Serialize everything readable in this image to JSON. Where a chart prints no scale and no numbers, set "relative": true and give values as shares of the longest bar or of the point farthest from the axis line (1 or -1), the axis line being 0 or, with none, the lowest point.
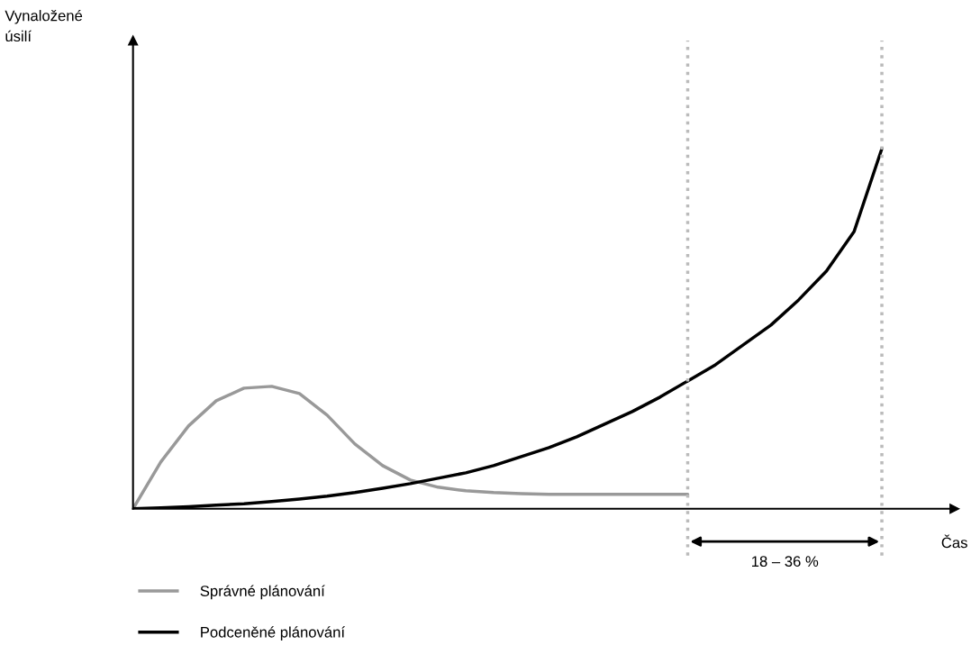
{
  "chart_data": {
    "type": "line",
    "relative": true,
    "xlabel": "Čas",
    "categories": [
      null,
      null,
      null,
      null,
      null,
      null,
      null,
      null,
      null,
      null,
      null,
      null,
      null,
      null,
      null,
      null,
      null,
      null,
      null,
      null,
      null,
      null,
      null,
      null,
      null,
      null,
      null,
      null
    ],
    "series": [
      {
        "name": "Správné plánování",
        "color": "#999999",
        "values": [
          0,
          0.13,
          0.23,
          0.3,
          0.335,
          0.34,
          0.32,
          0.26,
          0.18,
          0.12,
          0.08,
          0.06,
          0.05,
          0.045,
          0.042,
          0.04,
          0.04,
          0.04,
          0.04,
          0.04,
          0.04,
          null,
          null,
          null,
          null,
          null,
          null,
          null
        ]
      },
      {
        "name": "Podceněné plánování",
        "color": "#000000",
        "values": [
          0,
          0.003,
          0.006,
          0.01,
          0.014,
          0.02,
          0.027,
          0.035,
          0.045,
          0.057,
          0.07,
          0.085,
          0.1,
          0.12,
          0.145,
          0.17,
          0.2,
          0.235,
          0.27,
          0.31,
          0.355,
          0.4,
          0.455,
          0.51,
          0.58,
          0.66,
          0.77,
          1.0
        ]
      }
    ],
    "annotations": [
      "Vynaložené úsilí",
      "18 – 36 %"
    ],
    "legend": "bottom",
    "marker": "none",
    "line_style": "solid"
  }
}
